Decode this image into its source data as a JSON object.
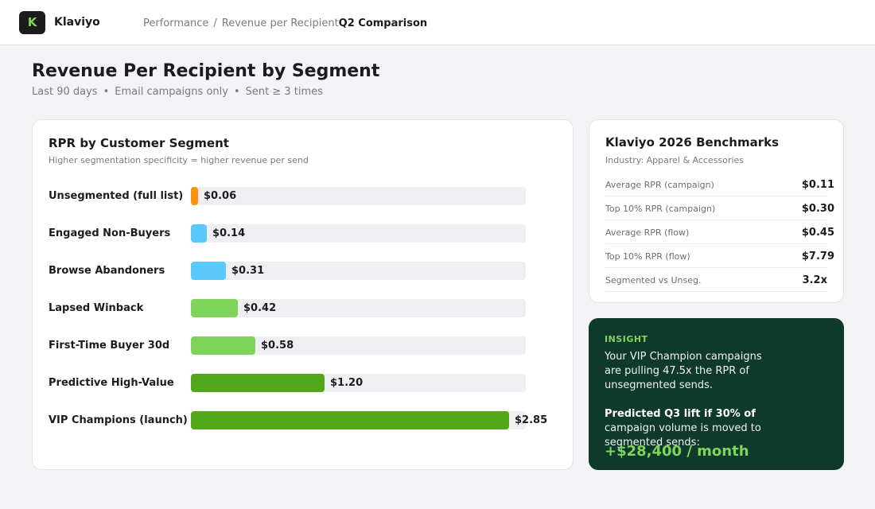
{
  "app": {
    "name": "Klaviyo",
    "logo_letter": "K"
  },
  "breadcrumb": {
    "items": [
      "Performance",
      "Revenue per Recipient"
    ],
    "current": "Q2 Comparison",
    "separator": "/"
  },
  "page": {
    "title": "Revenue Per Recipient by Segment",
    "filters": [
      "Last 90 days",
      "Email campaigns only",
      "Sent ≥ 3 times"
    ]
  },
  "chart_card": {
    "title": "RPR by Customer Segment",
    "subtitle": "Higher segmentation specificity = higher revenue per send"
  },
  "chart_data": {
    "type": "bar",
    "orientation": "horizontal",
    "title": "RPR by Customer Segment",
    "categories": [
      "Unsegmented (full list)",
      "Engaged Non-Buyers",
      "Browse Abandoners",
      "Lapsed Winback",
      "First-Time Buyer 30d",
      "Predictive High-Value",
      "VIP Champions (launch)"
    ],
    "values": [
      0.06,
      0.14,
      0.31,
      0.42,
      0.58,
      1.2,
      2.85
    ],
    "value_labels": [
      "$0.06",
      "$0.14",
      "$0.31",
      "$0.42",
      "$0.58",
      "$1.20",
      "$2.85"
    ],
    "colors": [
      "#f7910f",
      "#5ac8fa",
      "#5ac8fa",
      "#7ed35b",
      "#7ed35b",
      "#52a818",
      "#52a818"
    ],
    "xlim": [
      0,
      3.0
    ]
  },
  "benchmarks": {
    "title": "Klaviyo 2026 Benchmarks",
    "subtitle": "Industry: Apparel & Accessories",
    "rows": [
      {
        "label": "Average RPR (campaign)",
        "value": "$0.11"
      },
      {
        "label": "Top 10% RPR (campaign)",
        "value": "$0.30"
      },
      {
        "label": "Average RPR (flow)",
        "value": "$0.45"
      },
      {
        "label": "Top 10% RPR (flow)",
        "value": "$7.79"
      },
      {
        "label": "Segmented vs Unseg.",
        "value": "3.2x"
      }
    ]
  },
  "insight": {
    "tag": "INSIGHT",
    "text": "Your VIP Champion campaigns are pulling 47.5x the RPR of unsegmented sends.",
    "lift_bold": "Predicted Q3 lift if 30% of",
    "lift_rest": "campaign volume is moved to segmented sends:",
    "lift_value": "+$28,400 / month"
  },
  "colors": {
    "accent_green": "#7fd45b",
    "insight_bg": "#0f3a2b",
    "dark": "#1c1c1e"
  }
}
